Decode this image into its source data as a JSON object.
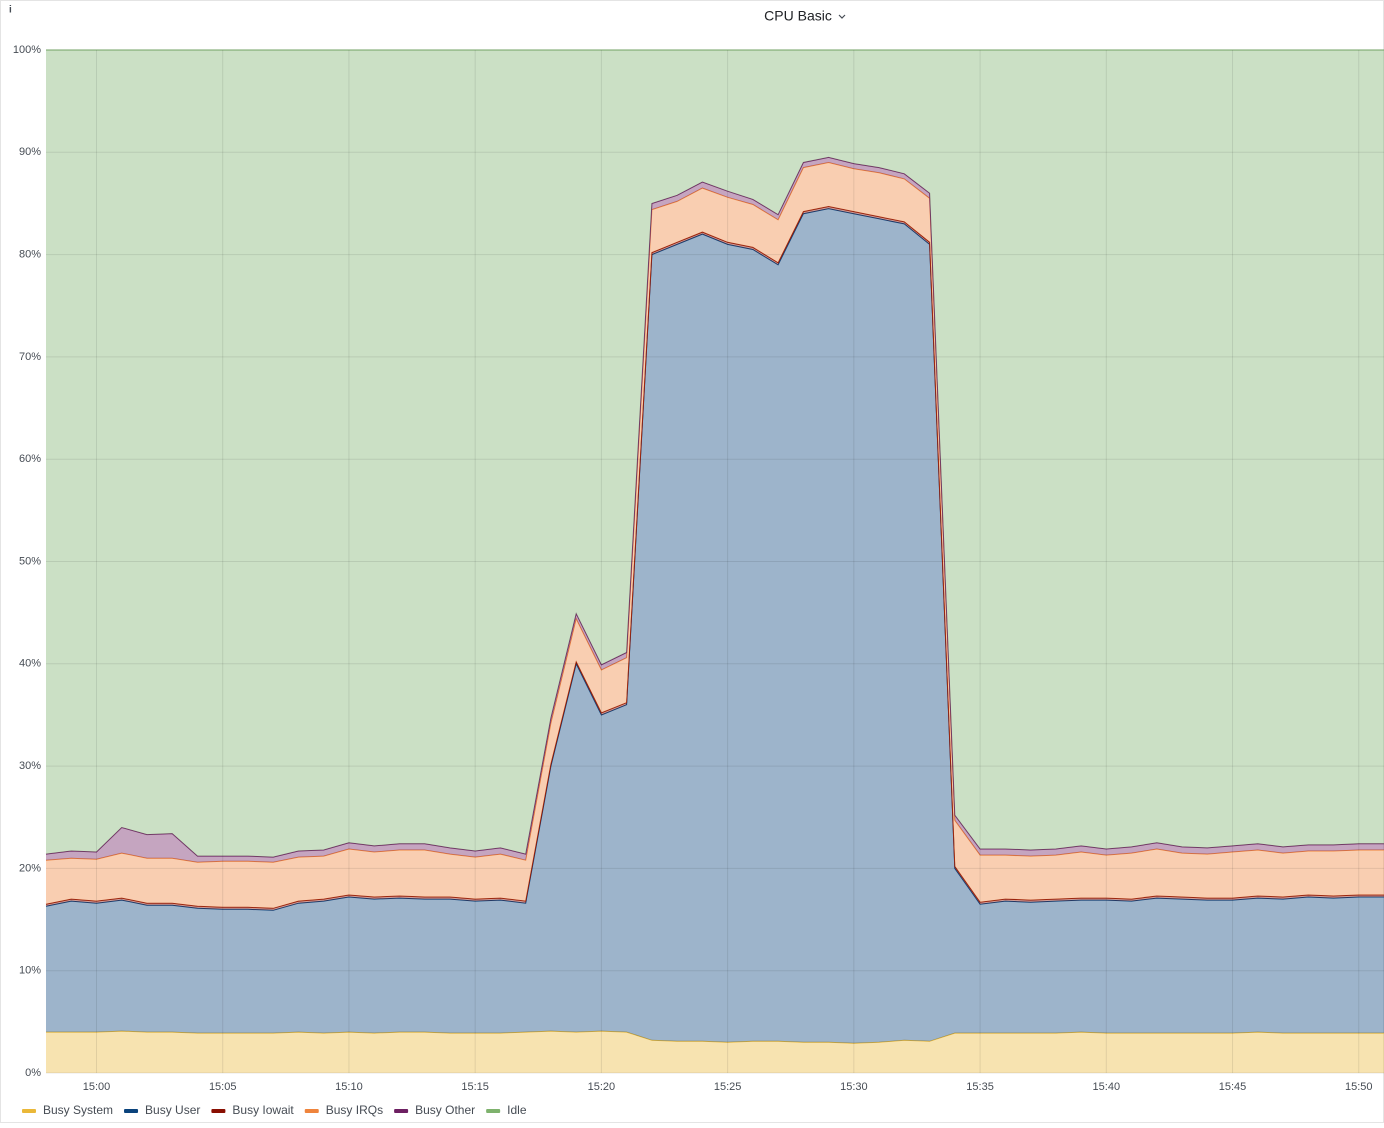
{
  "chart_data": {
    "type": "stacked-area",
    "title": "CPU Basic",
    "x": [
      "14:58",
      "14:59",
      "15:00",
      "15:01",
      "15:02",
      "15:03",
      "15:04",
      "15:05",
      "15:06",
      "15:07",
      "15:08",
      "15:09",
      "15:10",
      "15:11",
      "15:12",
      "15:13",
      "15:14",
      "15:15",
      "15:16",
      "15:17",
      "15:18",
      "15:19",
      "15:20",
      "15:21",
      "15:22",
      "15:23",
      "15:24",
      "15:25",
      "15:26",
      "15:27",
      "15:28",
      "15:29",
      "15:30",
      "15:31",
      "15:32",
      "15:33",
      "15:34",
      "15:35",
      "15:36",
      "15:37",
      "15:38",
      "15:39",
      "15:40",
      "15:41",
      "15:42",
      "15:43",
      "15:44",
      "15:45",
      "15:46",
      "15:47",
      "15:48",
      "15:49",
      "15:50",
      "15:51"
    ],
    "xlim": [
      "14:58",
      "15:51"
    ],
    "xticks": [
      "15:00",
      "15:05",
      "15:10",
      "15:15",
      "15:20",
      "15:25",
      "15:30",
      "15:35",
      "15:40",
      "15:45",
      "15:50"
    ],
    "ylim": [
      0,
      100
    ],
    "yticks": [
      {
        "value": 0,
        "label": "0%"
      },
      {
        "value": 10,
        "label": "10%"
      },
      {
        "value": 20,
        "label": "20%"
      },
      {
        "value": 30,
        "label": "30%"
      },
      {
        "value": 40,
        "label": "40%"
      },
      {
        "value": 50,
        "label": "50%"
      },
      {
        "value": 60,
        "label": "60%"
      },
      {
        "value": 70,
        "label": "70%"
      },
      {
        "value": 80,
        "label": "80%"
      },
      {
        "value": 90,
        "label": "90%"
      },
      {
        "value": 100,
        "label": "100%"
      }
    ],
    "grid": true,
    "series": [
      {
        "name": "Busy System",
        "color": "#EAB839",
        "values": [
          4.0,
          4.0,
          4.0,
          4.1,
          4.0,
          4.0,
          3.9,
          3.9,
          3.9,
          3.9,
          4.0,
          3.9,
          4.0,
          3.9,
          4.0,
          4.0,
          3.9,
          3.9,
          3.9,
          4.0,
          4.1,
          4.0,
          4.1,
          4.0,
          3.2,
          3.1,
          3.1,
          3.0,
          3.1,
          3.1,
          3.0,
          3.0,
          2.9,
          3.0,
          3.2,
          3.1,
          3.9,
          3.9,
          3.9,
          3.9,
          3.9,
          4.0,
          3.9,
          3.9,
          3.9,
          3.9,
          3.9,
          3.9,
          4.0,
          3.9,
          3.9,
          3.9,
          3.9,
          3.9
        ]
      },
      {
        "name": "Busy User",
        "color": "#0A437C",
        "values": [
          12.3,
          12.8,
          12.6,
          12.8,
          12.4,
          12.4,
          12.2,
          12.1,
          12.1,
          12.0,
          12.6,
          12.9,
          13.2,
          13.1,
          13.1,
          13.0,
          13.1,
          12.9,
          13.0,
          12.6,
          25.9,
          36.0,
          30.9,
          32.0,
          76.8,
          77.9,
          78.9,
          78.0,
          77.4,
          75.9,
          81.0,
          81.5,
          81.1,
          80.5,
          79.8,
          77.9,
          16.1,
          12.6,
          12.9,
          12.8,
          12.9,
          12.9,
          13.0,
          12.9,
          13.2,
          13.1,
          13.0,
          13.0,
          13.1,
          13.1,
          13.3,
          13.2,
          13.3,
          13.3
        ]
      },
      {
        "name": "Busy Iowait",
        "color": "#890F02",
        "values": [
          0.2,
          0.2,
          0.2,
          0.2,
          0.2,
          0.2,
          0.2,
          0.2,
          0.2,
          0.2,
          0.2,
          0.2,
          0.2,
          0.2,
          0.2,
          0.2,
          0.2,
          0.2,
          0.2,
          0.2,
          0.2,
          0.2,
          0.2,
          0.2,
          0.2,
          0.2,
          0.2,
          0.2,
          0.2,
          0.2,
          0.2,
          0.2,
          0.2,
          0.2,
          0.2,
          0.2,
          0.2,
          0.2,
          0.2,
          0.2,
          0.2,
          0.2,
          0.2,
          0.2,
          0.2,
          0.2,
          0.2,
          0.2,
          0.2,
          0.2,
          0.2,
          0.2,
          0.2,
          0.2
        ]
      },
      {
        "name": "Busy IRQs",
        "color": "#EF843C",
        "values": [
          4.3,
          4.0,
          4.1,
          4.4,
          4.4,
          4.4,
          4.3,
          4.5,
          4.5,
          4.5,
          4.3,
          4.2,
          4.5,
          4.4,
          4.5,
          4.6,
          4.2,
          4.1,
          4.3,
          4.0,
          4.0,
          4.2,
          4.2,
          4.4,
          4.2,
          4.0,
          4.3,
          4.4,
          4.2,
          4.2,
          4.3,
          4.3,
          4.2,
          4.3,
          4.2,
          4.3,
          4.5,
          4.6,
          4.3,
          4.3,
          4.3,
          4.5,
          4.2,
          4.5,
          4.6,
          4.3,
          4.3,
          4.5,
          4.5,
          4.3,
          4.3,
          4.4,
          4.4,
          4.4
        ]
      },
      {
        "name": "Busy Other",
        "color": "#6D1F62",
        "values": [
          0.6,
          0.7,
          0.7,
          2.5,
          2.3,
          2.4,
          0.6,
          0.5,
          0.5,
          0.5,
          0.6,
          0.6,
          0.6,
          0.6,
          0.6,
          0.6,
          0.6,
          0.6,
          0.6,
          0.6,
          0.5,
          0.5,
          0.5,
          0.5,
          0.6,
          0.6,
          0.6,
          0.6,
          0.5,
          0.5,
          0.5,
          0.5,
          0.5,
          0.5,
          0.5,
          0.5,
          0.5,
          0.6,
          0.6,
          0.6,
          0.6,
          0.6,
          0.6,
          0.6,
          0.6,
          0.6,
          0.6,
          0.6,
          0.6,
          0.6,
          0.6,
          0.6,
          0.6,
          0.6
        ]
      },
      {
        "name": "Idle",
        "color": "#7EB26D",
        "values": [
          78.6,
          78.3,
          78.4,
          76.0,
          76.7,
          76.6,
          78.8,
          78.8,
          78.8,
          78.9,
          78.3,
          78.2,
          77.5,
          77.8,
          77.6,
          77.6,
          78.0,
          78.3,
          78.0,
          78.6,
          65.3,
          55.1,
          60.1,
          58.9,
          15.0,
          14.2,
          12.9,
          13.8,
          14.6,
          16.1,
          11.0,
          10.5,
          11.1,
          11.5,
          12.1,
          14.0,
          74.8,
          78.1,
          78.1,
          78.2,
          78.1,
          77.8,
          78.1,
          77.9,
          77.5,
          77.9,
          78.0,
          77.8,
          77.6,
          77.9,
          77.7,
          77.7,
          77.6,
          77.6
        ]
      }
    ],
    "fill_opacity": 0.4
  }
}
